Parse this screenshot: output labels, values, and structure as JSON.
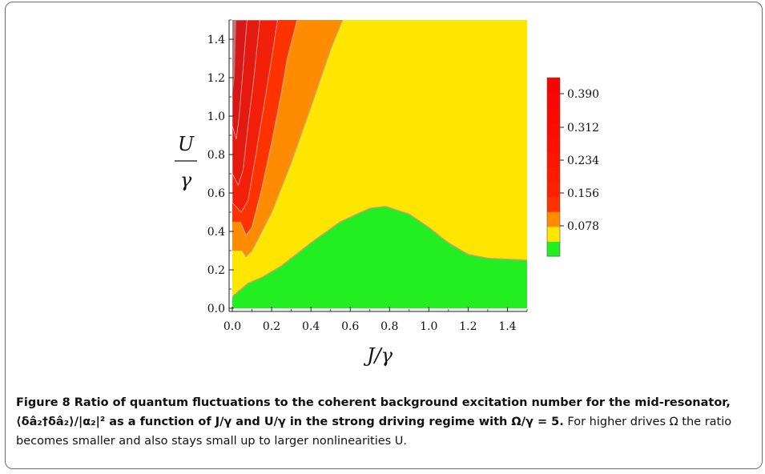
{
  "chart_data": {
    "type": "contour",
    "x_axis": {
      "label": "J/γ",
      "range": [
        0.0,
        1.5
      ],
      "ticks": [
        "0.0",
        "0.2",
        "0.4",
        "0.6",
        "0.8",
        "1.0",
        "1.2",
        "1.4"
      ]
    },
    "y_axis": {
      "label_numerator": "U",
      "label_denominator": "γ",
      "range": [
        0.0,
        1.5
      ],
      "ticks": [
        "0.0",
        "0.2",
        "0.4",
        "0.6",
        "0.8",
        "1.0",
        "1.2",
        "1.4"
      ]
    },
    "colorbar": {
      "levels": [
        "0.078",
        "0.156",
        "0.234",
        "0.312",
        "0.390"
      ],
      "bands": [
        {
          "range": "< 0.039",
          "color": "#22ee22"
        },
        {
          "range": "0.039–0.078",
          "color": "#ffe600"
        },
        {
          "range": "0.078–0.117",
          "color": "#ff8c00"
        },
        {
          "range": "0.117–0.156",
          "color": "#ff3300"
        },
        {
          "range": "> 0.156",
          "color": "#ff0000"
        }
      ]
    },
    "region_boundaries": {
      "green_yellow": [
        [
          0.0,
          0.06
        ],
        [
          0.08,
          0.13
        ],
        [
          0.15,
          0.16
        ],
        [
          0.25,
          0.22
        ],
        [
          0.4,
          0.34
        ],
        [
          0.55,
          0.45
        ],
        [
          0.7,
          0.52
        ],
        [
          0.78,
          0.53
        ],
        [
          0.9,
          0.49
        ],
        [
          1.0,
          0.42
        ],
        [
          1.1,
          0.34
        ],
        [
          1.2,
          0.28
        ],
        [
          1.3,
          0.26
        ],
        [
          1.5,
          0.25
        ]
      ],
      "yellow_orange": [
        [
          0.05,
          0.3
        ],
        [
          0.07,
          0.27
        ],
        [
          0.1,
          0.3
        ],
        [
          0.2,
          0.5
        ],
        [
          0.3,
          0.76
        ],
        [
          0.4,
          1.05
        ],
        [
          0.5,
          1.35
        ],
        [
          0.56,
          1.5
        ]
      ],
      "orange_red": [
        [
          0.04,
          0.45
        ],
        [
          0.07,
          0.38
        ],
        [
          0.1,
          0.42
        ],
        [
          0.15,
          0.62
        ],
        [
          0.2,
          0.86
        ],
        [
          0.25,
          1.12
        ],
        [
          0.28,
          1.3
        ],
        [
          0.33,
          1.5
        ]
      ]
    }
  },
  "caption": {
    "bold_text": "Figure 8  Ratio of quantum fluctuations to the coherent background excitation number for the mid-resonator, ⟨δâ₂†δâ₂⟩/|α₂|² as a function of J/γ and U/γ in the strong driving regime with Ω/γ = 5.",
    "regular_text": "For higher drives Ω the ratio becomes smaller and also stays small up to larger nonlinearities U."
  }
}
